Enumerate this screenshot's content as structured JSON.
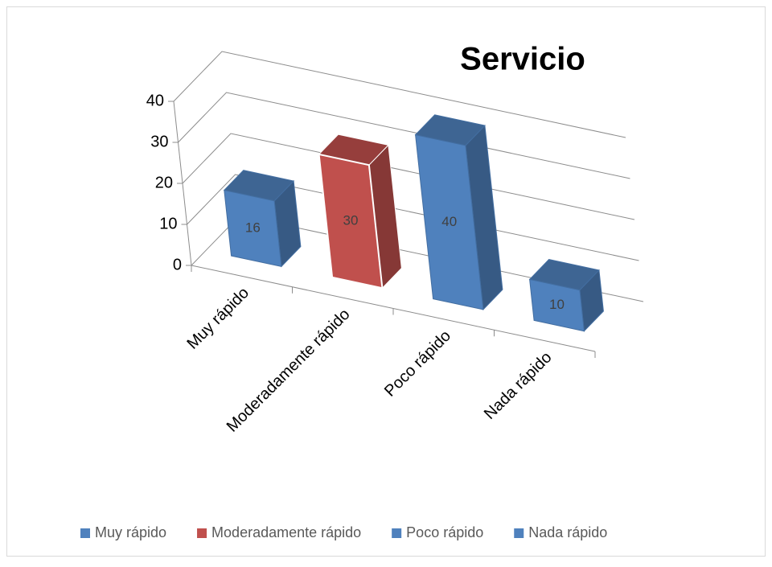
{
  "chart_data": {
    "type": "bar3d",
    "title": "Servicio",
    "categories": [
      "Muy rápido",
      "Moderadamente rápido",
      "Poco rápido",
      "Nada rápido"
    ],
    "values": [
      16,
      30,
      40,
      10
    ],
    "colors": [
      "#4f81bd",
      "#c0504d",
      "#4f81bd",
      "#4f81bd"
    ],
    "ylim": [
      0,
      40
    ],
    "yticks": [
      0,
      10,
      20,
      30,
      40
    ],
    "grid": true,
    "legend": "bottom"
  }
}
